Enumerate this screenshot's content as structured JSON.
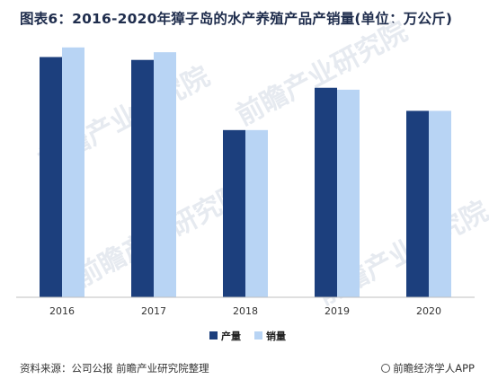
{
  "title": "图表6：2016-2020年獐子岛的水产养殖产品产销量(单位：万公斤)",
  "footer": {
    "source": "资料来源：公司公报 前瞻产业研究院整理",
    "brand": "前瞻经济学人APP"
  },
  "watermark": "前瞻产业研究院",
  "colors": {
    "production": "#1c3f7d",
    "sales": "#b8d4f4"
  },
  "chart_data": {
    "type": "bar",
    "title": "图表6：2016-2020年獐子岛的水产养殖产品产销量(单位：万公斤)",
    "categories": [
      "2016",
      "2017",
      "2018",
      "2019",
      "2020"
    ],
    "series": [
      {
        "name": "产量",
        "values": [
          25.0,
          24.7,
          17.4,
          21.8,
          19.4
        ]
      },
      {
        "name": "销量",
        "values": [
          26.0,
          25.5,
          17.4,
          21.6,
          19.4
        ]
      }
    ],
    "ylim": [
      0,
      30
    ],
    "grid": false,
    "legend": "bottom"
  }
}
